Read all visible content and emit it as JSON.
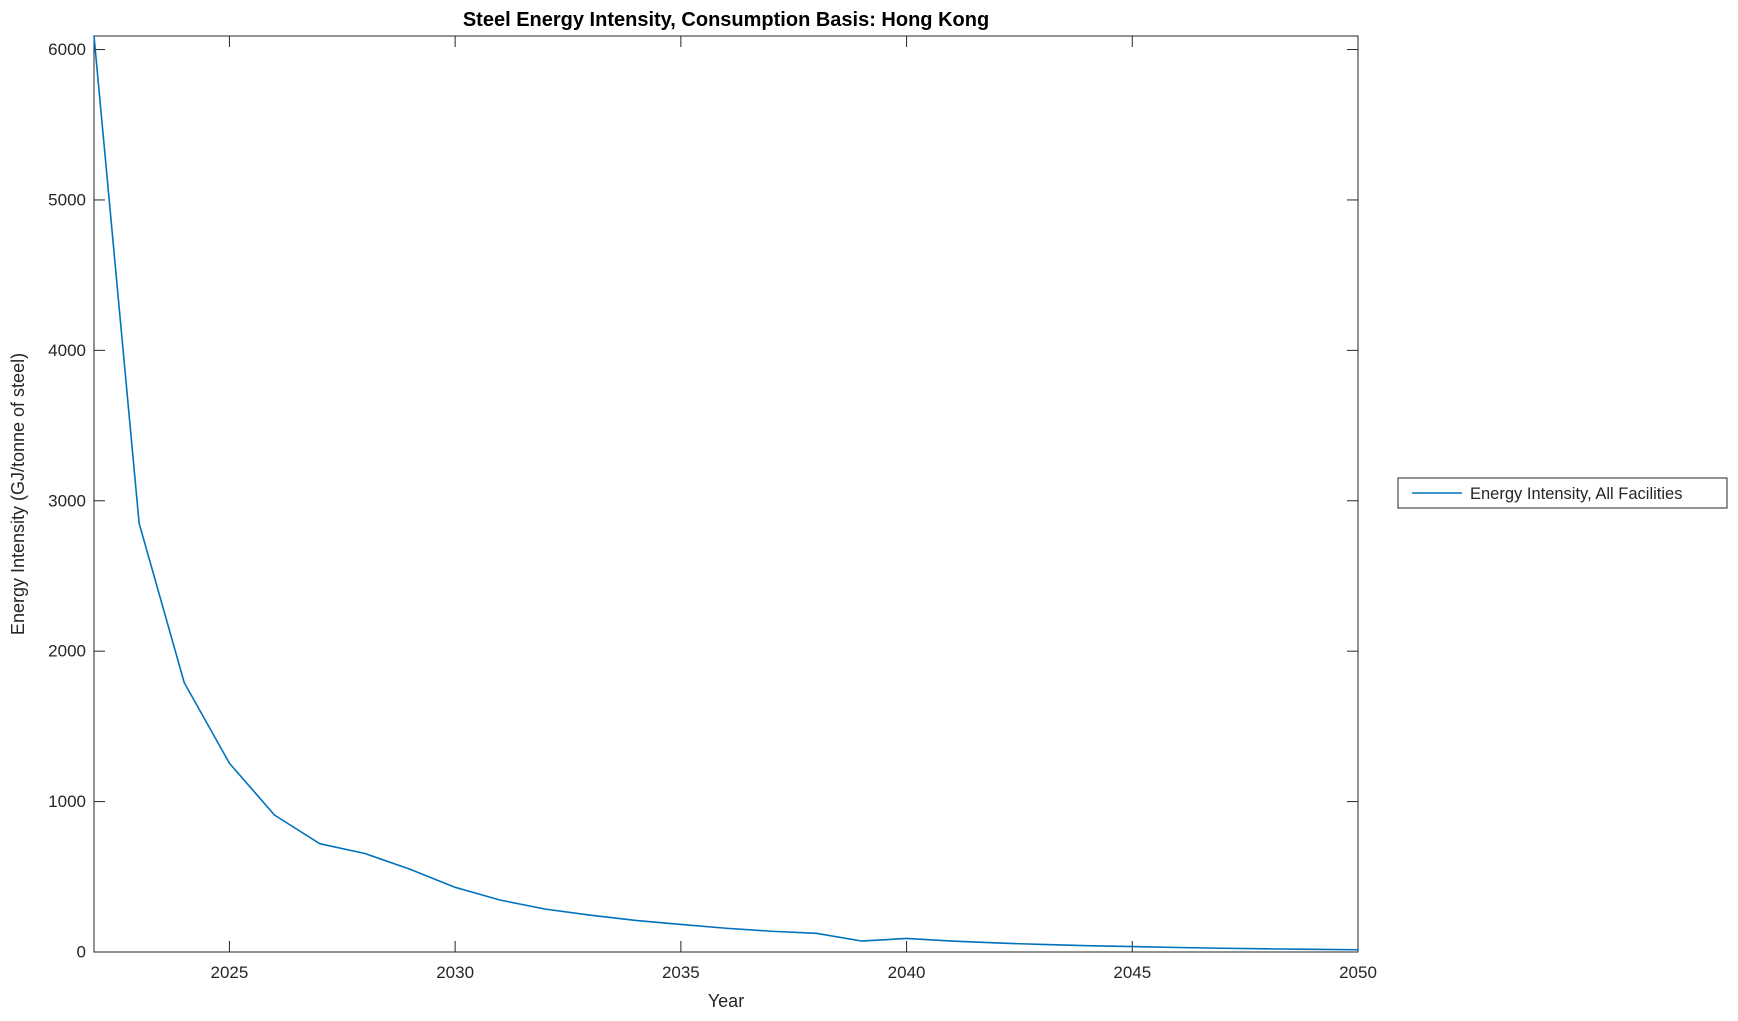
{
  "figure": {
    "background": "#ffffff",
    "axis_color": "#262626",
    "title_color": "#000000"
  },
  "chart_data": {
    "type": "line",
    "title": "Steel Energy Intensity, Consumption Basis: Hong Kong",
    "xlabel": "Year",
    "ylabel": "Energy Intensity (GJ/tonne of steel)",
    "xlim": [
      2022,
      2050
    ],
    "ylim": [
      0,
      6090
    ],
    "xticks": [
      2025,
      2030,
      2035,
      2040,
      2045,
      2050
    ],
    "yticks": [
      0,
      1000,
      2000,
      3000,
      4000,
      5000,
      6000
    ],
    "grid": false,
    "legend_position": "outside-right",
    "series": [
      {
        "name": "Energy Intensity, All Facilities",
        "color": "#0072BD",
        "x": [
          2022,
          2023,
          2024,
          2025,
          2026,
          2027,
          2028,
          2029,
          2030,
          2031,
          2032,
          2033,
          2034,
          2035,
          2036,
          2037,
          2038,
          2039,
          2040,
          2041,
          2042,
          2043,
          2044,
          2045,
          2046,
          2047,
          2048,
          2049,
          2050
        ],
        "values": [
          6090,
          2850,
          1790,
          1255,
          910,
          720,
          655,
          550,
          430,
          345,
          285,
          245,
          210,
          183,
          158,
          138,
          124,
          73,
          90,
          73,
          60,
          50,
          42,
          36,
          30,
          25,
          21,
          18,
          15
        ]
      }
    ]
  }
}
